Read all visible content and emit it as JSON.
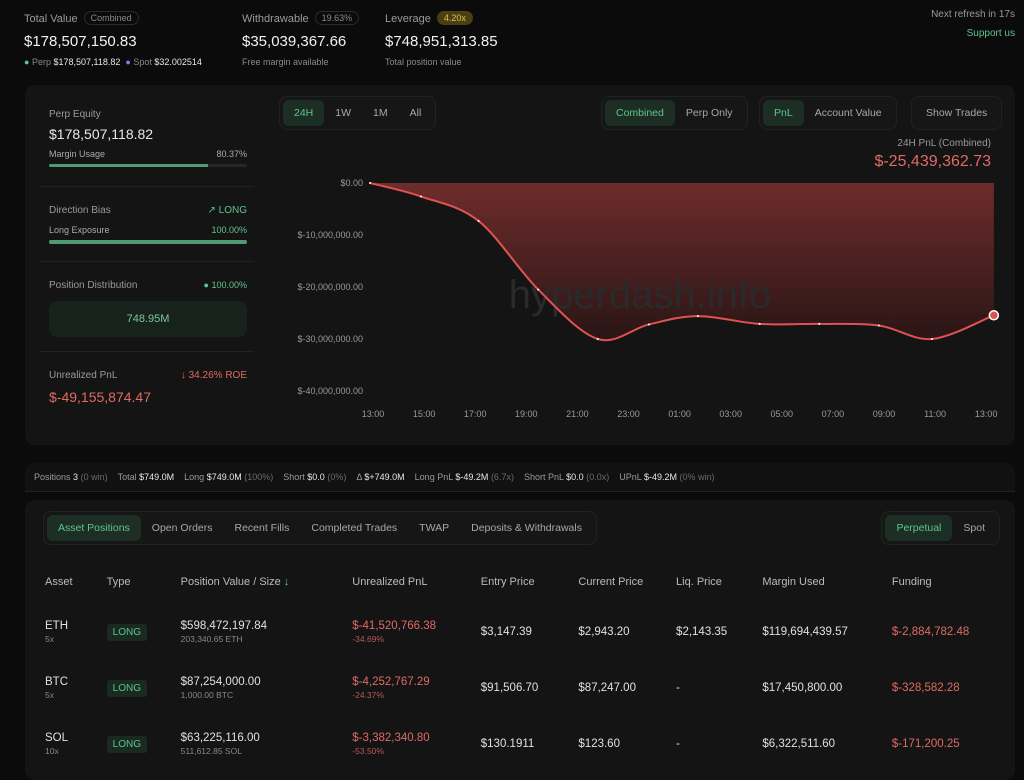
{
  "header": {
    "total_value": {
      "label": "Total Value",
      "badge": "Combined",
      "value": "$178,507,150.83",
      "perp_label": "Perp",
      "perp_value": "$178,507,118.82",
      "spot_label": "Spot",
      "spot_value": "$32.002514"
    },
    "withdrawable": {
      "label": "Withdrawable",
      "badge": "19.63%",
      "value": "$35,039,367.66",
      "sub": "Free margin available"
    },
    "leverage": {
      "label": "Leverage",
      "badge": "4.20x",
      "value": "$748,951,313.85",
      "sub": "Total position value"
    },
    "refresh": "Next refresh in 17s",
    "support": "Support us"
  },
  "side": {
    "perp_equity_label": "Perp Equity",
    "perp_equity": "$178,507,118.82",
    "margin_usage_label": "Margin Usage",
    "margin_usage": "80.37%",
    "margin_usage_pct": 80.37,
    "direction_label": "Direction Bias",
    "direction": "LONG",
    "long_exposure_label": "Long Exposure",
    "long_exposure": "100.00%",
    "long_exposure_pct": 100,
    "distribution_label": "Position Distribution",
    "distribution_pct": "100.00%",
    "distribution_value": "748.95M",
    "upnl_label": "Unrealized PnL",
    "roe": "34.26% ROE",
    "upnl": "$-49,155,874.47"
  },
  "chart_controls": {
    "ranges": [
      "24H",
      "1W",
      "1M",
      "All"
    ],
    "modes": [
      "Combined",
      "Perp Only"
    ],
    "metrics": [
      "PnL",
      "Account Value"
    ],
    "show_trades": "Show Trades"
  },
  "chart_data": {
    "type": "area",
    "title": "24H PnL (Combined)",
    "headline": "$-25,439,362.73",
    "watermark": "hyperdash.info",
    "x": [
      "13:00",
      "15:00",
      "17:15",
      "19:35",
      "21:55",
      "23:55",
      "01:50",
      "04:15",
      "06:35",
      "08:55",
      "11:00",
      "13:25"
    ],
    "values": [
      0,
      -2600000,
      -7300000,
      -20500000,
      -30000000,
      -27200000,
      -25600000,
      -27100000,
      -27100000,
      -27400000,
      -30000000,
      -25439362.73
    ],
    "x_ticks": [
      "13:00",
      "15:00",
      "17:00",
      "19:00",
      "21:00",
      "23:00",
      "01:00",
      "03:00",
      "05:00",
      "07:00",
      "09:00",
      "11:00",
      "13:00"
    ],
    "y_ticks": [
      "$0.00",
      "$-10,000,000.00",
      "$-20,000,000.00",
      "$-30,000,000.00",
      "$-40,000,000.00"
    ],
    "ylim": [
      -40000000,
      0
    ],
    "line_color": "#e0524f",
    "grid": false
  },
  "stats": [
    {
      "k": "Positions",
      "v": "3",
      "s": "(0 win)",
      "c": ""
    },
    {
      "k": "Total",
      "v": "$749.0M",
      "s": "",
      "c": ""
    },
    {
      "k": "Long",
      "v": "$749.0M",
      "s": "(100%)",
      "c": ""
    },
    {
      "k": "Short",
      "v": "$0.0",
      "s": "(0%)",
      "c": ""
    },
    {
      "k": "Δ",
      "v": "$+749.0M",
      "s": "",
      "c": "green"
    },
    {
      "k": "Long PnL",
      "v": "$-49.2M",
      "s": "(6.7x)",
      "c": "red"
    },
    {
      "k": "Short PnL",
      "v": "$0.0",
      "s": "(0.0x)",
      "c": "green"
    },
    {
      "k": "UPnL",
      "v": "$-49.2M",
      "s": "(0% win)",
      "c": "red"
    }
  ],
  "tabs": [
    "Asset Positions",
    "Open Orders",
    "Recent Fills",
    "Completed Trades",
    "TWAP",
    "Deposits & Withdrawals"
  ],
  "market_tabs": [
    "Perpetual",
    "Spot"
  ],
  "table": {
    "columns": [
      "Asset",
      "Type",
      "Position Value / Size",
      "Unrealized PnL",
      "Entry Price",
      "Current Price",
      "Liq. Price",
      "Margin Used",
      "Funding"
    ],
    "rows": [
      {
        "asset": "ETH",
        "lev": "5x",
        "type": "LONG",
        "value": "$598,472,197.84",
        "size": "203,340.65 ETH",
        "pnl": "$-41,520,766.38",
        "pnl_pct": "-34.69%",
        "entry": "$3,147.39",
        "current": "$2,943.20",
        "liq": "$2,143.35",
        "margin": "$119,694,439.57",
        "funding": "$-2,884,782.48"
      },
      {
        "asset": "BTC",
        "lev": "5x",
        "type": "LONG",
        "value": "$87,254,000.00",
        "size": "1,000.00 BTC",
        "pnl": "$-4,252,767.29",
        "pnl_pct": "-24.37%",
        "entry": "$91,506.70",
        "current": "$87,247.00",
        "liq": "-",
        "margin": "$17,450,800.00",
        "funding": "$-328,582.28"
      },
      {
        "asset": "SOL",
        "lev": "10x",
        "type": "LONG",
        "value": "$63,225,116.00",
        "size": "511,612.85 SOL",
        "pnl": "$-3,382,340.80",
        "pnl_pct": "-53.50%",
        "entry": "$130.1911",
        "current": "$123.60",
        "liq": "-",
        "margin": "$6,322,511.60",
        "funding": "$-171,200.25"
      }
    ]
  }
}
